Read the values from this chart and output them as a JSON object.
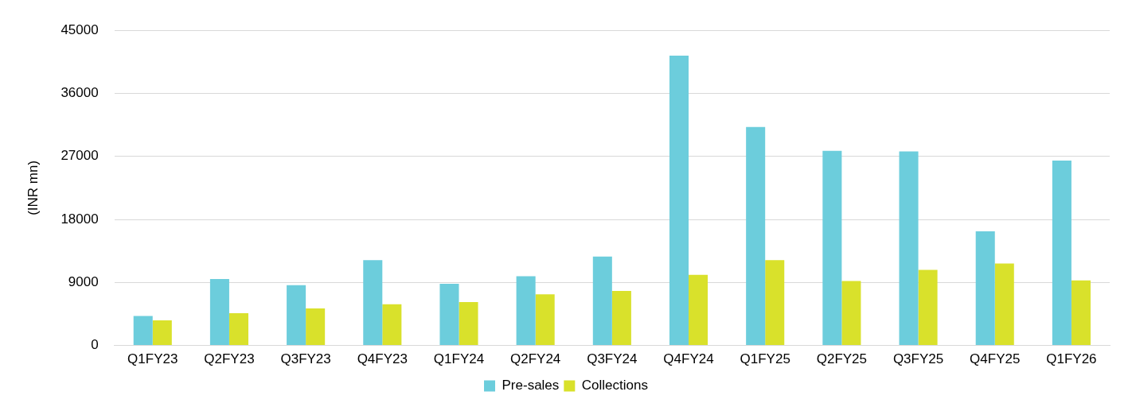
{
  "chart_data": {
    "type": "bar",
    "ylabel": "(INR mn)",
    "categories": [
      "Q1FY23",
      "Q2FY23",
      "Q3FY23",
      "Q4FY23",
      "Q1FY24",
      "Q2FY24",
      "Q3FY24",
      "Q4FY24",
      "Q1FY25",
      "Q2FY25",
      "Q3FY25",
      "Q4FY25",
      "Q1FY26"
    ],
    "series": [
      {
        "name": "Pre-sales",
        "color": "#6ccddc",
        "values": [
          4200,
          9500,
          8600,
          12200,
          8800,
          9900,
          12700,
          41400,
          31200,
          27800,
          27700,
          16300,
          26400
        ]
      },
      {
        "name": "Collections",
        "color": "#d9e12b",
        "values": [
          3600,
          4600,
          5300,
          5900,
          6200,
          7300,
          7800,
          10100,
          12200,
          9200,
          10800,
          11700,
          9300
        ]
      }
    ],
    "ylim": [
      0,
      45000
    ],
    "yticks": [
      0,
      9000,
      18000,
      27000,
      36000,
      45000
    ],
    "grid": "y",
    "legend": "bottom"
  }
}
